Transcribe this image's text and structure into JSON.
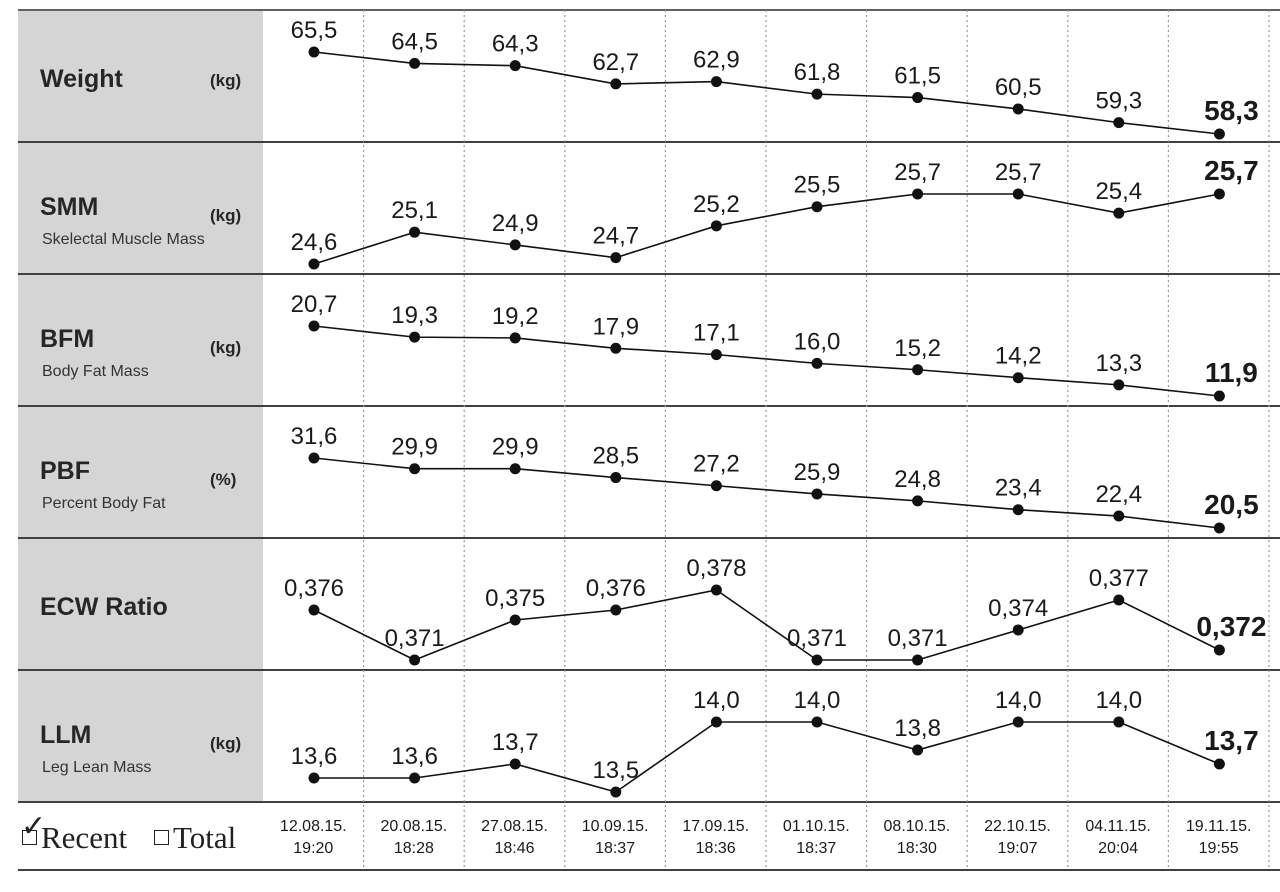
{
  "legend": {
    "recent_label": "Recent",
    "total_label": "Total",
    "recent_checked": true,
    "total_checked": false,
    "check_icon": "checkmark-icon"
  },
  "chart_data": {
    "type": "line",
    "x": [
      {
        "date": "12.08.15.",
        "time": "19:20"
      },
      {
        "date": "20.08.15.",
        "time": "18:28"
      },
      {
        "date": "27.08.15.",
        "time": "18:46"
      },
      {
        "date": "10.09.15.",
        "time": "18:37"
      },
      {
        "date": "17.09.15.",
        "time": "18:36"
      },
      {
        "date": "01.10.15.",
        "time": "18:37"
      },
      {
        "date": "08.10.15.",
        "time": "18:30"
      },
      {
        "date": "22.10.15.",
        "time": "19:07"
      },
      {
        "date": "04.11.15.",
        "time": "20:04"
      },
      {
        "date": "19.11.15.",
        "time": "19:55"
      }
    ],
    "series": [
      {
        "name": "Weight",
        "unit": "(kg)",
        "subtitle": "",
        "values": [
          65.5,
          64.5,
          64.3,
          62.7,
          62.9,
          61.8,
          61.5,
          60.5,
          59.3,
          58.3
        ],
        "labels": [
          "65,5",
          "64,5",
          "64,3",
          "62,7",
          "62,9",
          "61,8",
          "61,5",
          "60,5",
          "59,3",
          "58,3"
        ]
      },
      {
        "name": "SMM",
        "unit": "(kg)",
        "subtitle": "Skelectal Muscle Mass",
        "values": [
          24.6,
          25.1,
          24.9,
          24.7,
          25.2,
          25.5,
          25.7,
          25.7,
          25.4,
          25.7
        ],
        "labels": [
          "24,6",
          "25,1",
          "24,9",
          "24,7",
          "25,2",
          "25,5",
          "25,7",
          "25,7",
          "25,4",
          "25,7"
        ]
      },
      {
        "name": "BFM",
        "unit": "(kg)",
        "subtitle": "Body Fat Mass",
        "values": [
          20.7,
          19.3,
          19.2,
          17.9,
          17.1,
          16.0,
          15.2,
          14.2,
          13.3,
          11.9
        ],
        "labels": [
          "20,7",
          "19,3",
          "19,2",
          "17,9",
          "17,1",
          "16,0",
          "15,2",
          "14,2",
          "13,3",
          "11,9"
        ]
      },
      {
        "name": "PBF",
        "unit": "(%)",
        "subtitle": "Percent Body Fat",
        "values": [
          31.6,
          29.9,
          29.9,
          28.5,
          27.2,
          25.9,
          24.8,
          23.4,
          22.4,
          20.5
        ],
        "labels": [
          "31,6",
          "29,9",
          "29,9",
          "28,5",
          "27,2",
          "25,9",
          "24,8",
          "23,4",
          "22,4",
          "20,5"
        ]
      },
      {
        "name": "ECW Ratio",
        "unit": "",
        "subtitle": "",
        "values": [
          0.376,
          0.371,
          0.375,
          0.376,
          0.378,
          0.371,
          0.371,
          0.374,
          0.377,
          0.372
        ],
        "labels": [
          "0,376",
          "0,371",
          "0,375",
          "0,376",
          "0,378",
          "0,371",
          "0,371",
          "0,374",
          "0,377",
          "0,372"
        ]
      },
      {
        "name": "LLM",
        "unit": "(kg)",
        "subtitle": "Leg Lean Mass",
        "values": [
          13.6,
          13.6,
          13.7,
          13.5,
          14.0,
          14.0,
          13.8,
          14.0,
          14.0,
          13.7
        ],
        "labels": [
          "13,6",
          "13,6",
          "13,7",
          "13,5",
          "14,0",
          "14,0",
          "13,8",
          "14,0",
          "14,0",
          "13,7"
        ]
      }
    ]
  }
}
